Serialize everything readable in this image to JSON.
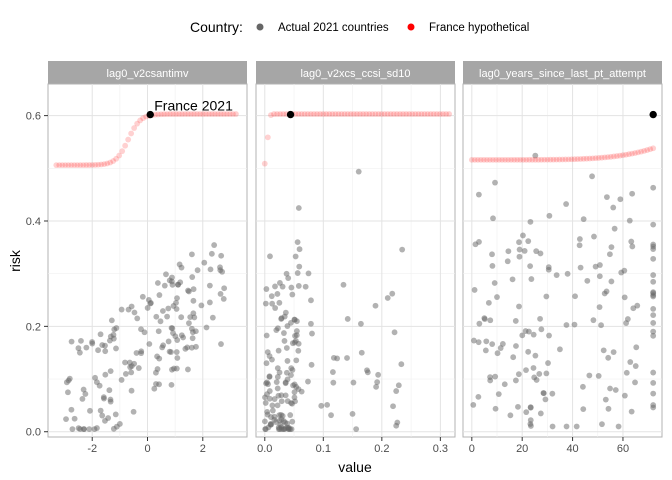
{
  "legend": {
    "title": "Country:",
    "items": [
      {
        "label": "Actual 2021 countries",
        "color": "#666666"
      },
      {
        "label": "France hypothetical",
        "color": "#ff0000"
      }
    ]
  },
  "chart_data": {
    "type": "scatter",
    "xlabel": "value",
    "ylabel": "risk",
    "ylim": [
      -0.01,
      0.66
    ],
    "yticks": [
      0.0,
      0.2,
      0.4,
      0.6
    ],
    "ytick_labels": [
      "0.0",
      "0.2",
      "0.4",
      "0.6"
    ],
    "grid": true,
    "legend_position": "top",
    "annotation": {
      "text": "France 2021",
      "facet": 0
    },
    "facets": [
      {
        "title": "lag0_v2csantimv",
        "xlim": [
          -3.6,
          3.6
        ],
        "xticks": [
          -2,
          0,
          2
        ],
        "xtick_labels": [
          "-2",
          "0",
          "2"
        ],
        "france_2021": {
          "x": 0.1,
          "y": 0.602
        },
        "hypothetical_range": [
          -3.3,
          3.2
        ]
      },
      {
        "title": "lag0_v2xcs_ccsi_sd10",
        "xlim": [
          -0.015,
          0.325
        ],
        "xticks": [
          0.0,
          0.1,
          0.2,
          0.3
        ],
        "xtick_labels": [
          "0.0",
          "0.1",
          "0.2",
          "0.3"
        ],
        "france_2021": {
          "x": 0.044,
          "y": 0.602
        },
        "hypothetical_range": [
          0.0,
          0.315
        ]
      },
      {
        "title": "lag0_years_since_last_pt_attempt",
        "xlim": [
          -3.5,
          75.5
        ],
        "xticks": [
          0,
          20,
          40,
          60
        ],
        "xtick_labels": [
          "0",
          "20",
          "40",
          "60"
        ],
        "france_2021": {
          "x": 72,
          "y": 0.602
        },
        "hypothetical_range": [
          0,
          72
        ]
      }
    ]
  }
}
